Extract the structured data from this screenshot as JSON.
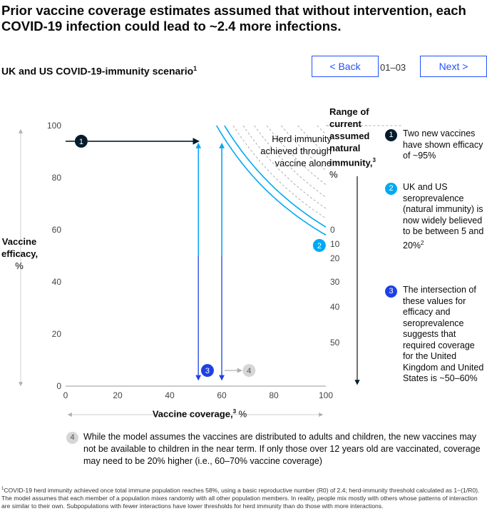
{
  "title": "Prior vaccine coverage estimates assumed that without intervention, each COVID-19 infection could lead to ~2.4 more infections.",
  "subtitle": "UK and US COVID-19-immunity scenario",
  "subtitle_sup": "1",
  "nav": {
    "back_label": "<  Back",
    "next_label": "Next  >",
    "page_indicator": "01–03"
  },
  "colors": {
    "accent": "#2251ff",
    "navy": "#051c2c",
    "cyan": "#00a9f4",
    "dark_blue": "#1f40e6",
    "grid_dash": "#9a9a9a"
  },
  "chart_data": {
    "type": "line",
    "xlabel": "Vaccine coverage,",
    "xlabel_sup": "3",
    "xlabel_unit": " %",
    "ylabel_line1": "Vaccine",
    "ylabel_line2": "efficacy,",
    "ylabel_line3": "%",
    "xlim": [
      0,
      100
    ],
    "ylim": [
      0,
      100
    ],
    "x_ticks": [
      "0",
      "20",
      "40",
      "60",
      "80",
      "100"
    ],
    "y_ticks": [
      "0",
      "20",
      "40",
      "60",
      "80",
      "100"
    ],
    "right_axis_label_lines": [
      "Range of",
      "current",
      "assumed",
      "natural",
      "immunity,",
      "%"
    ],
    "right_axis_label_sup": "3",
    "immunity_labels": [
      "0",
      "10",
      "20",
      "30",
      "40",
      "50"
    ],
    "herd_threshold": 58,
    "annotation": [
      "Herd immunity",
      "achieved through",
      "vaccine alone"
    ],
    "series": [
      {
        "immunity": 0,
        "highlight": true
      },
      {
        "immunity": 5,
        "highlight": true
      },
      {
        "immunity": 10
      },
      {
        "immunity": 15
      },
      {
        "immunity": 20
      },
      {
        "immunity": 25
      },
      {
        "immunity": 30
      },
      {
        "immunity": 35
      },
      {
        "immunity": 40
      },
      {
        "immunity": 45
      },
      {
        "immunity": 50
      },
      {
        "immunity": 55
      }
    ],
    "markers": [
      {
        "id": "1",
        "x": 6,
        "y": 94,
        "arrow_to_x": 51
      },
      {
        "id": "2",
        "x": 97.5,
        "y": 54
      },
      {
        "id": "3",
        "x": 54.5,
        "y": 6
      },
      {
        "id": "4",
        "x": 70.5,
        "y": 6
      }
    ],
    "vertical_arrows": [
      51,
      60
    ]
  },
  "legend": [
    {
      "num": "1",
      "text": "Two new vaccines have shown efficacy of ~95%"
    },
    {
      "num": "2",
      "text": "UK and US seroprevalence (natural immunity) is now widely believed to be between 5 and 20%",
      "sup": "2"
    },
    {
      "num": "3",
      "text": "The intersection of these values for efficacy and seroprevalence suggests that required coverage for the United Kingdom and United States is ~50–60%"
    }
  ],
  "note4": {
    "num": "4",
    "text": "While the model assumes the vaccines are distributed to adults and children, the new vaccines may not be available to children in the near term. If only those over 12 years old are vaccinated, coverage may need to be 20% higher (i.e., 60–70% vaccine coverage)"
  },
  "footnote_sup": "1",
  "footnote": "COVID-19 herd immunity achieved once total immune population reaches 58%, using a basic reproductive number (R0) of 2.4; herd-immunity threshold calculated as 1−(1/R0). The model assumes that each member of a population mixes randomly with all other population members. In reality, people mix mostly with others whose patterns of interaction are similar to their own. Subpopulations with fewer interactions have lower thresholds for herd immunity than do those with more interactions."
}
